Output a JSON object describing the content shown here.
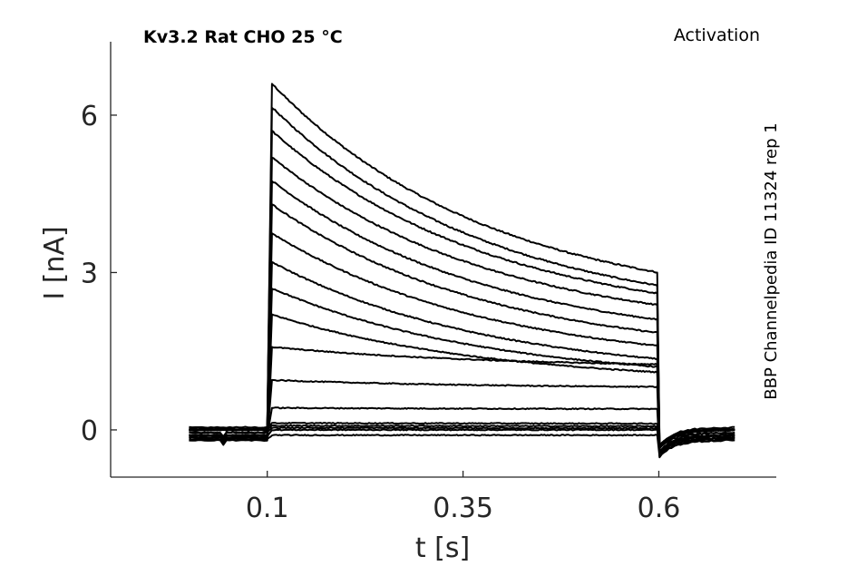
{
  "chart_data": {
    "type": "line",
    "title_left": "Kv3.2  Rat  CHO  25 °C",
    "title_right": "Activation",
    "side_label": "BBP Channelpedia ID 11324 rep 1",
    "xlabel": "t [s]",
    "ylabel": "I [nA]",
    "xlim": [
      -0.1,
      0.75
    ],
    "ylim": [
      -0.9,
      7.4
    ],
    "xticks": [
      0.1,
      0.35,
      0.6
    ],
    "xtick_labels": [
      "0.1",
      "0.35",
      "0.6"
    ],
    "yticks": [
      0,
      3,
      6
    ],
    "ytick_labels": [
      "0",
      "3",
      "6"
    ],
    "grid": false,
    "step_start": 0.1,
    "step_end": 0.6,
    "series": [
      {
        "peak": 6.6,
        "end": 3.0,
        "baseline": 0.0
      },
      {
        "peak": 6.15,
        "end": 2.75,
        "baseline": 0.0
      },
      {
        "peak": 5.7,
        "end": 2.6,
        "baseline": 0.02
      },
      {
        "peak": 5.2,
        "end": 2.38,
        "baseline": 0.0
      },
      {
        "peak": 4.75,
        "end": 2.1,
        "baseline": -0.05
      },
      {
        "peak": 4.3,
        "end": 1.85,
        "baseline": 0.0
      },
      {
        "peak": 3.75,
        "end": 1.6,
        "baseline": 0.0
      },
      {
        "peak": 3.2,
        "end": 1.35,
        "baseline": -0.1
      },
      {
        "peak": 2.7,
        "end": 1.2,
        "baseline": -0.1
      },
      {
        "peak": 2.2,
        "end": 1.1,
        "baseline": -0.15
      },
      {
        "peak": 1.58,
        "end": 1.25,
        "baseline": -0.2
      },
      {
        "peak": 0.95,
        "end": 0.82,
        "baseline": -0.15
      },
      {
        "peak": 0.42,
        "end": 0.4,
        "baseline": -0.1
      },
      {
        "peak": 0.13,
        "end": 0.12,
        "baseline": 0.05
      },
      {
        "peak": 0.08,
        "end": 0.07,
        "baseline": 0.0
      },
      {
        "peak": 0.04,
        "end": 0.03,
        "baseline": -0.05
      },
      {
        "peak": 0.0,
        "end": 0.0,
        "baseline": -0.12
      },
      {
        "peak": -0.1,
        "end": -0.1,
        "baseline": -0.18
      }
    ]
  }
}
